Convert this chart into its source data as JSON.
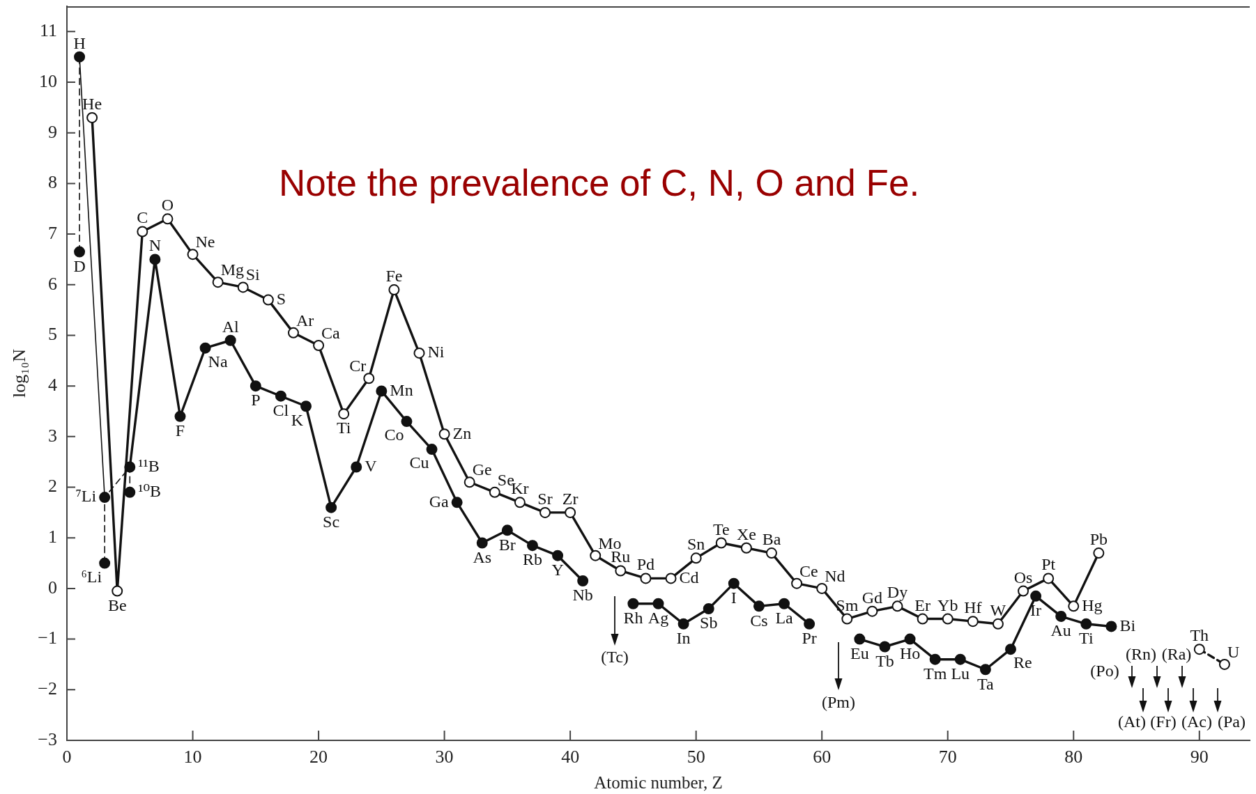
{
  "chart_data": {
    "type": "line",
    "xlabel": "Atomic number, Z",
    "ylabel": "log₁₀N",
    "xlim": [
      0,
      94
    ],
    "xticks": [
      0,
      10,
      20,
      30,
      40,
      50,
      60,
      70,
      80,
      90
    ],
    "ylim": [
      -3,
      11.5
    ],
    "yticks": [
      -3,
      -2,
      -1,
      0,
      1,
      2,
      3,
      4,
      5,
      6,
      7,
      8,
      9,
      10,
      11
    ],
    "series": [
      {
        "type": "line",
        "x": [
          1,
          1
        ],
        "values": [
          6.65,
          10.5
        ],
        "color": "#111111",
        "marker": "none",
        "line_style": "dashed"
      },
      {
        "type": "line",
        "x": [
          1,
          3
        ],
        "values": [
          10.5,
          1.8
        ],
        "color": "#111111",
        "marker": "none",
        "line_style": "solid"
      },
      {
        "type": "line",
        "x": [
          3,
          3,
          5,
          5
        ],
        "values": [
          0.5,
          1.8,
          2.4,
          1.9
        ],
        "color": "#111111",
        "marker": "none",
        "line_style": "dashed"
      },
      {
        "type": "scatter",
        "x": [
          1,
          1,
          3,
          3,
          5
        ],
        "values": [
          6.65,
          10.5,
          0.5,
          1.8,
          1.9
        ],
        "color": "#111111",
        "marker": "circle",
        "value_labels": [
          "D",
          "H",
          "⁶Li",
          "⁷Li",
          "¹⁰B"
        ]
      },
      {
        "type": "line",
        "x": [
          2,
          4,
          6,
          8,
          10,
          12,
          14,
          16,
          18,
          20,
          22,
          24,
          26,
          28,
          30,
          32,
          34,
          36,
          38,
          40,
          42,
          44,
          46,
          48,
          50,
          52,
          54,
          56,
          58,
          60,
          62,
          64,
          66,
          68,
          70,
          72,
          74,
          76,
          78,
          80,
          82
        ],
        "values": [
          9.3,
          -0.05,
          7.05,
          7.3,
          6.6,
          6.05,
          5.95,
          5.7,
          5.05,
          4.8,
          3.45,
          4.15,
          5.9,
          4.65,
          3.05,
          2.1,
          1.9,
          1.7,
          1.5,
          1.5,
          0.65,
          0.35,
          0.2,
          0.2,
          0.6,
          0.9,
          0.8,
          0.7,
          0.1,
          0,
          -0.6,
          -0.45,
          -0.35,
          -0.6,
          -0.6,
          -0.65,
          -0.7,
          -0.05,
          0.2,
          -0.35,
          0.7
        ],
        "color": "#111111",
        "colors": [
          "#ffffff",
          "#ffffff",
          "#ffffff",
          "#ffffff",
          "#ffffff",
          "#ffffff",
          "#ffffff",
          "#ffffff",
          "#ffffff",
          "#ffffff",
          "#ffffff",
          "#ffffff",
          "#ffffff",
          "#ffffff",
          "#ffffff",
          "#ffffff",
          "#ffffff",
          "#ffffff",
          "#ffffff",
          "#ffffff",
          "#ffffff",
          "#ffffff",
          "#ffffff",
          "#ffffff",
          "#ffffff",
          "#ffffff",
          "#ffffff",
          "#ffffff",
          "#ffffff",
          "#ffffff",
          "#ffffff",
          "#ffffff",
          "#ffffff",
          "#ffffff",
          "#ffffff",
          "#ffffff",
          "#ffffff",
          "#ffffff",
          "#ffffff",
          "#ffffff",
          "#ffffff"
        ],
        "marker": "circle",
        "line_style": "solid",
        "value_labels": [
          "He",
          "Be",
          "C",
          "O",
          "Ne",
          "Mg",
          "Si",
          "S",
          "Ar",
          "Ca",
          "Ti",
          "Cr",
          "Fe",
          "Ni",
          "Zn",
          "Ge",
          "Se",
          "Kr",
          "Sr",
          "Zr",
          "Mo",
          "Ru",
          "Pd",
          "Cd",
          "Sn",
          "Te",
          "Xe",
          "Ba",
          "Ce",
          "Nd",
          "Sm",
          "Gd",
          "Dy",
          "Er",
          "Yb",
          "Hf",
          "W",
          "Os",
          "Pt",
          "Hg",
          "Pb"
        ]
      },
      {
        "type": "line",
        "x": [
          5,
          7,
          9,
          11,
          13,
          15,
          17,
          19,
          21,
          23,
          25,
          27,
          29,
          31,
          33,
          35,
          37,
          39,
          41,
          43,
          45,
          47,
          49,
          51,
          53,
          55,
          57,
          59,
          61,
          63,
          65,
          67,
          69,
          71,
          73,
          75,
          77,
          79,
          81,
          83
        ],
        "values": [
          2.4,
          6.5,
          3.4,
          4.75,
          4.9,
          4.0,
          3.8,
          3.6,
          1.6,
          2.4,
          3.9,
          3.3,
          2.75,
          1.7,
          0.9,
          1.15,
          0.85,
          0.65,
          0.15,
          null,
          -0.3,
          -0.3,
          -0.7,
          -0.4,
          0.1,
          -0.35,
          -0.3,
          -0.7,
          null,
          -1.0,
          -1.15,
          -1.0,
          -1.4,
          -1.4,
          -1.6,
          -1.2,
          -0.15,
          -0.55,
          -0.7,
          -0.75
        ],
        "color": "#111111",
        "marker": "circle",
        "line_style": "solid",
        "value_labels": [
          "¹¹B",
          "N",
          "F",
          "Na",
          "Al",
          "P",
          "Cl",
          "K",
          "Sc",
          "V",
          "Mn",
          "Co",
          "Cu",
          "Ga",
          "As",
          "Br",
          "Rb",
          "Y",
          "Nb",
          null,
          "Rh",
          "Ag",
          "In",
          "Sb",
          "I",
          "Cs",
          "La",
          "Pr",
          null,
          "Eu",
          "Tb",
          "Ho",
          "Tm",
          "Lu",
          "Ta",
          "Re",
          "Ir",
          "Au",
          "Ti",
          "Bi"
        ]
      },
      {
        "type": "line",
        "x": [
          90,
          92
        ],
        "values": [
          -1.2,
          -1.5
        ],
        "color": "#111111",
        "colors": [
          "#ffffff",
          "#ffffff"
        ],
        "marker": "circle",
        "line_style": "dashed",
        "value_labels": [
          "Th",
          "U"
        ]
      }
    ],
    "annotations": [
      "Note the prevalence of C, N, O and Fe.",
      "(Tc)",
      "(Pm)",
      "(Po)",
      "(At)",
      "(Rn)",
      "(Fr)",
      "(Ra)",
      "(Ac)",
      "(Pa)"
    ]
  }
}
